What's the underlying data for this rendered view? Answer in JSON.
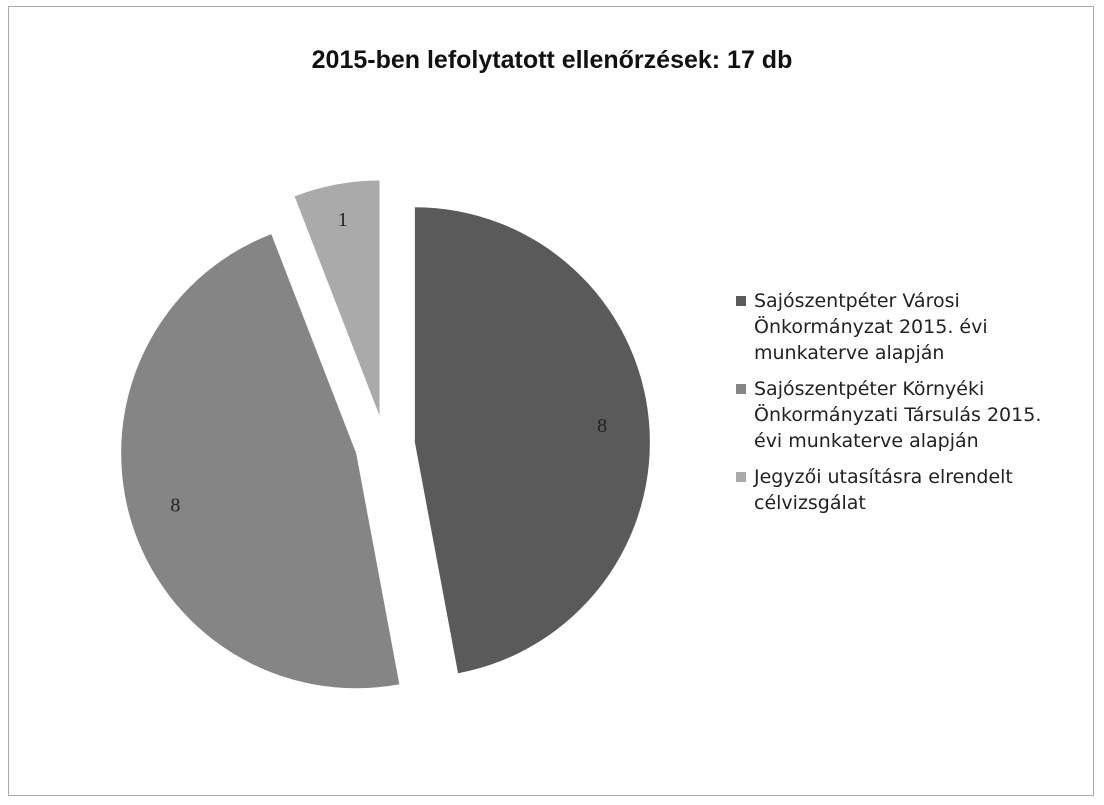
{
  "chart_data": {
    "type": "pie",
    "title": "2015-ben lefolytatott ellenőrzések: 17 db",
    "categories": [
      "Sajószentpéter Városi Önkormányzat 2015. évi munkaterve alapján",
      "Sajószentpéter Környéki Önkormányzati Társulás 2015. évi munkaterve alapján",
      "Jegyzői utasításra elrendelt célvizsgálat"
    ],
    "values": [
      8,
      8,
      1
    ],
    "colors": [
      "#5a5a5a",
      "#858585",
      "#aaaaaa"
    ],
    "legend": "right"
  }
}
